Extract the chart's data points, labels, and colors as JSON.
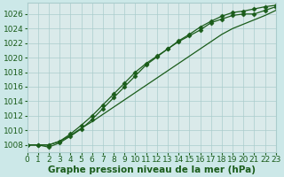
{
  "xlabel": "Graphe pression niveau de la mer (hPa)",
  "background_color": "#cce8e8",
  "plot_bg_color": "#daeaea",
  "grid_color": "#aacccc",
  "line_color": "#1a5c1a",
  "marker_color": "#1a5c1a",
  "xmin": 0,
  "xmax": 23,
  "ymin": 1007,
  "ymax": 1027.5,
  "yticks": [
    1008,
    1010,
    1012,
    1014,
    1016,
    1018,
    1020,
    1022,
    1024,
    1026
  ],
  "xticks": [
    0,
    1,
    2,
    3,
    4,
    5,
    6,
    7,
    8,
    9,
    10,
    11,
    12,
    13,
    14,
    15,
    16,
    17,
    18,
    19,
    20,
    21,
    22,
    23
  ],
  "series": [
    [
      1008.0,
      1008.0,
      1007.7,
      1008.3,
      1009.2,
      1010.2,
      1011.5,
      1013.0,
      1014.5,
      1016.0,
      1017.5,
      1019.0,
      1020.1,
      1021.2,
      1022.2,
      1023.0,
      1023.8,
      1024.8,
      1025.3,
      1025.8,
      1026.0,
      1026.0,
      1026.5,
      1027.0
    ],
    [
      1008.0,
      1008.0,
      1008.0,
      1008.5,
      1009.3,
      1010.3,
      1011.2,
      1012.2,
      1013.2,
      1014.2,
      1015.2,
      1016.2,
      1017.2,
      1018.2,
      1019.2,
      1020.2,
      1021.2,
      1022.2,
      1023.2,
      1024.0,
      1024.6,
      1025.2,
      1025.8,
      1026.5
    ],
    [
      1008.0,
      1008.0,
      1008.0,
      1008.5,
      1009.5,
      1010.7,
      1012.0,
      1013.5,
      1015.0,
      1016.5,
      1018.0,
      1019.2,
      1020.2,
      1021.2,
      1022.3,
      1023.2,
      1024.2,
      1025.0,
      1025.7,
      1026.2,
      1026.4,
      1026.7,
      1027.0,
      1027.2
    ]
  ],
  "marker_series": [
    0,
    2
  ],
  "marker_style": "D",
  "marker_size": 2.5,
  "line_width": 0.9,
  "fontsize_label": 7.5,
  "fontsize_tick": 6.5
}
